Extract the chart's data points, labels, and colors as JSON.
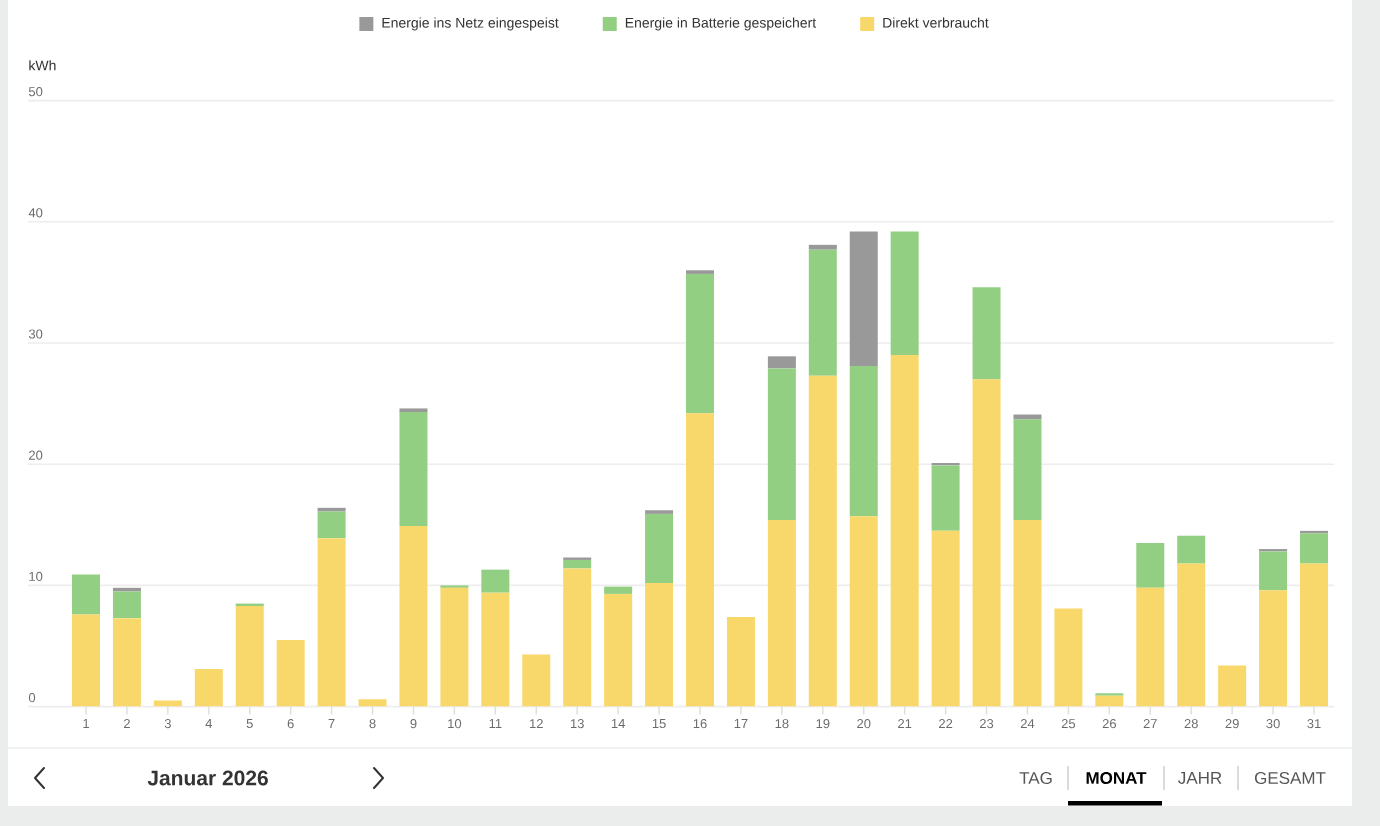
{
  "chart_data": {
    "type": "bar",
    "stacked": true,
    "categories": [
      "1",
      "2",
      "3",
      "4",
      "5",
      "6",
      "7",
      "8",
      "9",
      "10",
      "11",
      "12",
      "13",
      "14",
      "15",
      "16",
      "17",
      "18",
      "19",
      "20",
      "21",
      "22",
      "23",
      "24",
      "25",
      "26",
      "27",
      "28",
      "29",
      "30",
      "31"
    ],
    "series": [
      {
        "name": "Direkt verbraucht",
        "color": "#f9d86b",
        "values": [
          7.6,
          7.3,
          0.5,
          3.1,
          8.3,
          5.5,
          13.9,
          0.6,
          14.9,
          9.8,
          9.4,
          4.3,
          11.4,
          9.3,
          10.2,
          24.2,
          7.4,
          15.4,
          27.3,
          15.7,
          29.0,
          14.5,
          27.0,
          15.4,
          8.1,
          0.9,
          9.8,
          11.8,
          3.4,
          9.6,
          11.8
        ]
      },
      {
        "name": "Energie in Batterie gespeichert",
        "color": "#93cf83",
        "values": [
          3.3,
          2.2,
          0,
          0,
          0.2,
          0,
          2.2,
          0,
          9.4,
          0.2,
          1.9,
          0,
          0.7,
          0.6,
          5.7,
          11.5,
          0,
          12.5,
          10.4,
          12.4,
          10.2,
          5.4,
          7.6,
          8.3,
          0,
          0.2,
          3.7,
          2.3,
          0,
          3.2,
          2.5
        ]
      },
      {
        "name": "Energie ins Netz eingespeist",
        "color": "#999999",
        "values": [
          0,
          0.3,
          0,
          0,
          0,
          0,
          0.3,
          0,
          0.3,
          0,
          0,
          0,
          0.2,
          0,
          0.3,
          0.3,
          0,
          1.0,
          0.4,
          11.1,
          0,
          0.2,
          0,
          0.4,
          0,
          0,
          0,
          0,
          0,
          0.2,
          0.2
        ]
      }
    ],
    "ylabel": "kWh",
    "ylim": [
      0,
      50
    ],
    "yticks": [
      0,
      10,
      20,
      30,
      40,
      50
    ],
    "grid": "y",
    "legend": "top",
    "annotations": [
      "Januar 2026",
      "TAG",
      "MONAT",
      "JAHR",
      "GESAMT"
    ]
  }
}
